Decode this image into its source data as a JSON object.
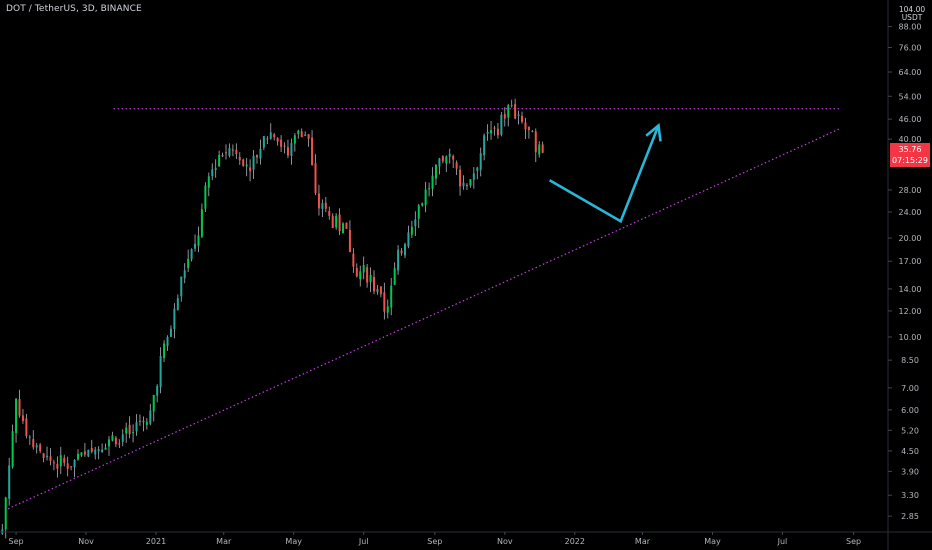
{
  "header": {
    "symbol_label": "DOT / TetherUS, 3D, BINANCE"
  },
  "price_axis": {
    "top_label": "104.00",
    "unit_label": "USDT",
    "current_price": "35.76",
    "countdown": "07:15:29",
    "current_color": "#f23645"
  },
  "colors": {
    "up": "#26a69a",
    "up_bright": "#00c853",
    "down": "#ef5350",
    "wick": "#b2b5be",
    "trendline": "#c040e0",
    "projection": "#29b6d8"
  },
  "chart_data": {
    "type": "candlestick",
    "scale": "log",
    "title": "DOT / TetherUS, 3D, BINANCE",
    "y_ticks": [
      2.85,
      3.3,
      3.9,
      4.5,
      5.2,
      6.0,
      7.0,
      8.5,
      10.0,
      12.0,
      14.0,
      17.0,
      20.0,
      24.0,
      28.0,
      40.0,
      46.0,
      54.0,
      64.0,
      76.0,
      88.0
    ],
    "y_tick_labels": [
      "2.85",
      "3.30",
      "3.90",
      "4.50",
      "5.20",
      "6.00",
      "7.00",
      "8.50",
      "10.00",
      "12.00",
      "14.00",
      "17.00",
      "20.00",
      "24.00",
      "28.00",
      "40.00",
      "46.00",
      "54.00",
      "64.00",
      "76.00",
      "88.00"
    ],
    "x_ticks": [
      "2020-09-01",
      "2020-11-01",
      "2021-01-01",
      "2021-03-01",
      "2021-05-01",
      "2021-07-01",
      "2021-09-01",
      "2021-11-01",
      "2022-01-01",
      "2022-03-01",
      "2022-05-01",
      "2022-07-01",
      "2022-09-01"
    ],
    "x_tick_labels": [
      "Sep",
      "Nov",
      "2021",
      "Mar",
      "May",
      "Jul",
      "Sep",
      "Nov",
      "2022",
      "Mar",
      "May",
      "Jul",
      "Sep"
    ],
    "x_range": [
      "2020-08-18",
      "2022-10-01"
    ],
    "y_range": [
      2.55,
      106
    ],
    "series": [
      {
        "points": [
          [
            "2020-08-20",
            2.6
          ],
          [
            "2020-09-01",
            6.5
          ],
          [
            "2020-09-10",
            5.2
          ],
          [
            "2020-09-20",
            4.4
          ],
          [
            "2020-10-01",
            4.2
          ],
          [
            "2020-10-15",
            4.1
          ],
          [
            "2020-11-01",
            4.3
          ],
          [
            "2020-11-20",
            4.9
          ],
          [
            "2020-12-10",
            5.1
          ],
          [
            "2020-12-25",
            5.4
          ],
          [
            "2021-01-05",
            8.5
          ],
          [
            "2021-01-15",
            11.0
          ],
          [
            "2021-01-25",
            16.0
          ],
          [
            "2021-02-05",
            19.0
          ],
          [
            "2021-02-15",
            30.0
          ],
          [
            "2021-02-25",
            36.0
          ],
          [
            "2021-03-10",
            38.0
          ],
          [
            "2021-03-25",
            33.0
          ],
          [
            "2021-04-05",
            40.0
          ],
          [
            "2021-04-15",
            43.0
          ],
          [
            "2021-04-25",
            35.0
          ],
          [
            "2021-05-05",
            44.0
          ],
          [
            "2021-05-15",
            40.0
          ],
          [
            "2021-05-20",
            26.0
          ],
          [
            "2021-06-01",
            23.0
          ],
          [
            "2021-06-15",
            21.0
          ],
          [
            "2021-06-25",
            16.0
          ],
          [
            "2021-07-05",
            15.5
          ],
          [
            "2021-07-20",
            12.0
          ],
          [
            "2021-08-01",
            18.0
          ],
          [
            "2021-08-15",
            24.0
          ],
          [
            "2021-08-25",
            28.0
          ],
          [
            "2021-09-05",
            33.0
          ],
          [
            "2021-09-15",
            35.0
          ],
          [
            "2021-09-25",
            29.0
          ],
          [
            "2021-10-05",
            32.0
          ],
          [
            "2021-10-15",
            40.0
          ],
          [
            "2021-10-25",
            43.0
          ],
          [
            "2021-11-05",
            50.0
          ],
          [
            "2021-11-15",
            45.0
          ],
          [
            "2021-11-25",
            40.0
          ],
          [
            "2021-12-05",
            35.76
          ]
        ],
        "chart_type": "candlestick_approximation"
      }
    ],
    "annotations": {
      "resistance_line": {
        "from": [
          "2020-11-25",
          49.5
        ],
        "to": [
          "2022-08-20",
          49.5
        ]
      },
      "rising_trendline": {
        "from": [
          "2020-08-25",
          3.0
        ],
        "to": [
          "2022-08-20",
          43.0
        ]
      },
      "projection_path": [
        [
          "2021-12-10",
          30.0
        ],
        [
          "2022-02-10",
          22.5
        ],
        [
          "2022-03-15",
          44.0
        ]
      ]
    }
  }
}
